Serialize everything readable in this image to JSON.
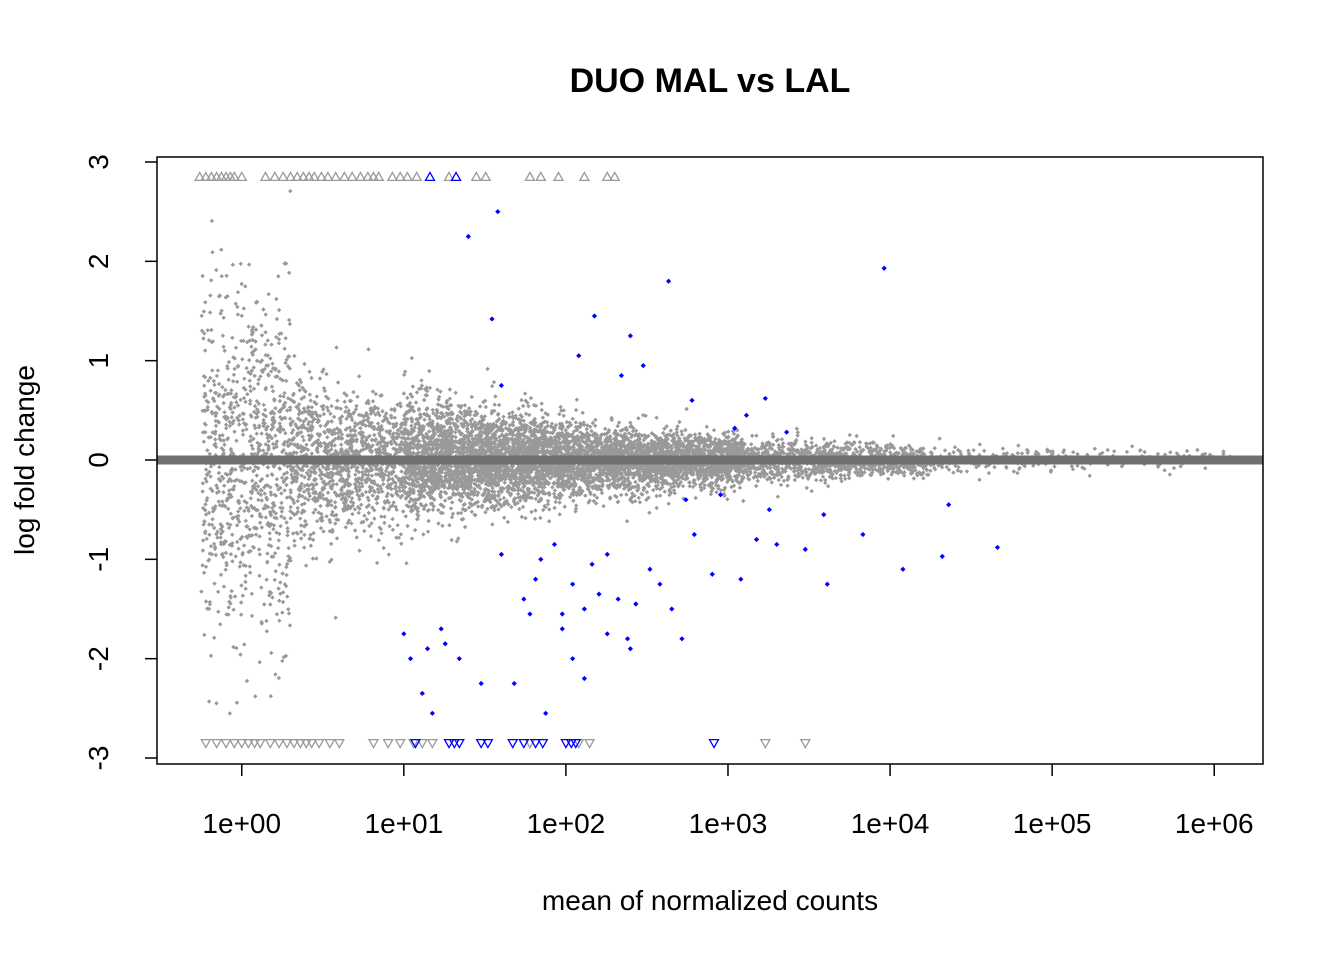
{
  "chart_data": {
    "type": "scatter",
    "title": "DUO MAL vs LAL",
    "xlabel": "mean of normalized counts",
    "ylabel": "log fold change",
    "x_scale": "log10",
    "xlim": [
      0.3,
      2000000
    ],
    "ylim": [
      -3,
      3
    ],
    "x_ticks": [
      {
        "value": 1,
        "label": "1e+00"
      },
      {
        "value": 10,
        "label": "1e+01"
      },
      {
        "value": 100,
        "label": "1e+02"
      },
      {
        "value": 1000,
        "label": "1e+03"
      },
      {
        "value": 10000,
        "label": "1e+04"
      },
      {
        "value": 100000,
        "label": "1e+05"
      },
      {
        "value": 1000000,
        "label": "1e+06"
      }
    ],
    "y_ticks": [
      {
        "value": -3,
        "label": "-3"
      },
      {
        "value": -2,
        "label": "-2"
      },
      {
        "value": -1,
        "label": "-1"
      },
      {
        "value": 0,
        "label": "0"
      },
      {
        "value": 1,
        "label": "1"
      },
      {
        "value": 2,
        "label": "2"
      },
      {
        "value": 3,
        "label": "3"
      }
    ],
    "reference_line": {
      "y": 0,
      "color": "#707070"
    },
    "grid": false,
    "colors": {
      "not_significant": "#999999",
      "significant": "#0000FF",
      "axis": "#000000"
    },
    "series": [
      {
        "significant": true,
        "points": [
          [
            25,
            2.25
          ],
          [
            38,
            2.5
          ],
          [
            430,
            1.8
          ],
          [
            9200,
            1.93
          ],
          [
            120,
            1.05
          ],
          [
            150,
            1.45
          ],
          [
            250,
            1.25
          ],
          [
            300,
            0.95
          ],
          [
            40,
            0.75
          ],
          [
            35,
            1.42
          ],
          [
            220,
            0.85
          ],
          [
            600,
            0.6
          ],
          [
            1300,
            0.45
          ],
          [
            1700,
            0.62
          ],
          [
            2300,
            0.28
          ],
          [
            1100,
            0.32
          ],
          [
            55,
            -1.4
          ],
          [
            65,
            -1.2
          ],
          [
            70,
            -1.0
          ],
          [
            85,
            -0.85
          ],
          [
            95,
            -1.55
          ],
          [
            110,
            -1.25
          ],
          [
            130,
            -1.5
          ],
          [
            145,
            -1.05
          ],
          [
            160,
            -1.35
          ],
          [
            180,
            -0.95
          ],
          [
            210,
            -1.4
          ],
          [
            240,
            -1.8
          ],
          [
            270,
            -1.45
          ],
          [
            330,
            -1.1
          ],
          [
            380,
            -1.25
          ],
          [
            450,
            -1.5
          ],
          [
            520,
            -1.8
          ],
          [
            620,
            -0.75
          ],
          [
            800,
            -1.15
          ],
          [
            900,
            -0.35
          ],
          [
            1200,
            -1.2
          ],
          [
            1500,
            -0.8
          ],
          [
            2000,
            -0.85
          ],
          [
            3000,
            -0.9
          ],
          [
            4100,
            -1.25
          ],
          [
            6800,
            -0.75
          ],
          [
            12000,
            -1.1
          ],
          [
            21000,
            -0.97
          ],
          [
            46000,
            -0.88
          ],
          [
            10,
            -1.75
          ],
          [
            11,
            -2.0
          ],
          [
            13,
            -2.35
          ],
          [
            14,
            -1.9
          ],
          [
            15,
            -2.55
          ],
          [
            17,
            -1.7
          ],
          [
            18,
            -1.85
          ],
          [
            22,
            -2.0
          ],
          [
            30,
            -2.25
          ],
          [
            48,
            -2.25
          ],
          [
            75,
            -2.55
          ],
          [
            110,
            -2.0
          ],
          [
            250,
            -1.9
          ],
          [
            130,
            -2.2
          ],
          [
            180,
            -1.75
          ],
          [
            95,
            -1.7
          ],
          [
            60,
            -1.55
          ],
          [
            40,
            -0.95
          ],
          [
            3900,
            -0.55
          ],
          [
            23000,
            -0.45
          ],
          [
            1800,
            -0.5
          ],
          [
            550,
            -0.4
          ]
        ]
      }
    ],
    "censored_points": [
      {
        "y": 2.85,
        "direction": "up",
        "significant": false,
        "x": [
          0.55,
          0.6,
          0.65,
          0.7,
          0.75,
          0.8,
          0.85,
          0.9,
          1.0,
          1.4,
          1.6,
          1.8,
          2.0,
          2.2,
          2.4,
          2.6,
          2.8,
          3.1,
          3.4,
          3.8,
          4.3,
          4.8,
          5.4,
          6.0,
          6.5,
          7.0,
          8.5,
          9.5,
          10.5,
          12.0,
          19.0,
          28.0,
          32.0,
          60.0,
          70.0,
          90.0,
          130.0,
          180.0,
          200.0
        ]
      },
      {
        "y": 2.85,
        "direction": "up",
        "significant": true,
        "x": [
          14.5,
          21.0
        ]
      },
      {
        "y": -2.85,
        "direction": "down",
        "significant": false,
        "x": [
          0.6,
          0.7,
          0.8,
          0.9,
          1.0,
          1.1,
          1.2,
          1.3,
          1.5,
          1.7,
          1.9,
          2.1,
          2.3,
          2.5,
          2.7,
          3.0,
          3.5,
          4.0,
          6.5,
          8.0,
          9.5,
          11.5,
          13.0,
          15.0,
          60.0,
          120.0,
          140.0,
          1700.0,
          3000.0
        ]
      },
      {
        "y": -2.85,
        "direction": "down",
        "significant": true,
        "x": [
          11.8,
          19.0,
          20.5,
          22.0,
          30.0,
          33.0,
          47.0,
          55.0,
          65.0,
          72.0,
          100.0,
          108.0,
          115.0,
          820.0
        ]
      }
    ]
  }
}
